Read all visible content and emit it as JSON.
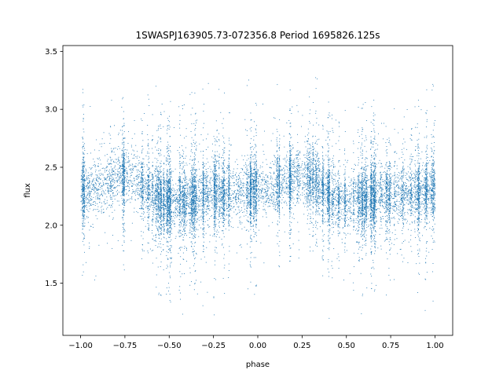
{
  "chart_data": {
    "type": "scatter",
    "title": "1SWASPJ163905.73-072356.8 Period 1695826.125s",
    "xlabel": "phase",
    "ylabel": "flux",
    "xlim": [
      -1.1,
      1.1
    ],
    "ylim": [
      1.05,
      3.55
    ],
    "x_ticks": [
      -1.0,
      -0.75,
      -0.5,
      -0.25,
      0.0,
      0.25,
      0.5,
      0.75,
      1.0
    ],
    "x_tick_labels": [
      "−1.00",
      "−0.75",
      "−0.50",
      "−0.25",
      "0.00",
      "0.25",
      "0.50",
      "0.75",
      "1.00"
    ],
    "y_ticks": [
      1.5,
      2.0,
      2.5,
      3.0,
      3.5
    ],
    "y_tick_labels": [
      "1.5",
      "2.0",
      "2.5",
      "3.0",
      "3.5"
    ],
    "grid": false,
    "legend": "none",
    "marker_color": "#1f77b4",
    "phase_range": [
      -1.0,
      1.0
    ],
    "flux_band": {
      "median_by_phase": [
        {
          "phase": -1.0,
          "flux": 2.3
        },
        {
          "phase": -0.75,
          "flux": 2.42
        },
        {
          "phase": -0.5,
          "flux": 2.2
        },
        {
          "phase": -0.25,
          "flux": 2.27
        },
        {
          "phase": 0.0,
          "flux": 2.3
        },
        {
          "phase": 0.25,
          "flux": 2.42
        },
        {
          "phase": 0.5,
          "flux": 2.2
        },
        {
          "phase": 0.75,
          "flux": 2.27
        },
        {
          "phase": 1.0,
          "flux": 2.3
        }
      ],
      "typical_min": 1.2,
      "typical_max": 3.45
    }
  }
}
